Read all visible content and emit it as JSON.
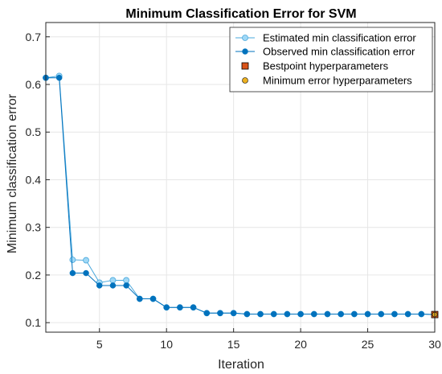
{
  "chart_data": {
    "type": "line",
    "title": "Minimum Classification Error for SVM",
    "xlabel": "Iteration",
    "ylabel": "Minimum classification error",
    "xlim": [
      1,
      30
    ],
    "ylim": [
      0.08,
      0.73
    ],
    "xticks": [
      5,
      10,
      15,
      20,
      25,
      30
    ],
    "yticks": [
      0.1,
      0.2,
      0.3,
      0.4,
      0.5,
      0.6,
      0.7
    ],
    "grid": true,
    "legend_position": "top-right",
    "colors": {
      "estimated": "#9fd8f6",
      "estimated_edge": "#4aa8dc",
      "observed": "#0072bd",
      "bestpoint": "#d95319",
      "minerror": "#edb120"
    },
    "series": [
      {
        "name": "Estimated min classification error",
        "x": [
          1,
          2,
          3,
          4,
          5,
          6,
          7,
          8,
          9,
          10,
          11,
          12,
          13,
          14,
          15,
          16,
          17,
          18,
          19,
          20,
          21,
          22,
          23,
          24,
          25,
          26,
          27,
          28,
          29,
          30
        ],
        "values": [
          0.614,
          0.618,
          0.232,
          0.231,
          0.184,
          0.189,
          0.189,
          0.15,
          0.15,
          0.132,
          0.132,
          0.132,
          0.12,
          0.12,
          0.12,
          0.118,
          0.118,
          0.118,
          0.118,
          0.118,
          0.118,
          0.118,
          0.118,
          0.118,
          0.118,
          0.118,
          0.118,
          0.118,
          0.118,
          0.117
        ]
      },
      {
        "name": "Observed min classification error",
        "x": [
          1,
          2,
          3,
          4,
          5,
          6,
          7,
          8,
          9,
          10,
          11,
          12,
          13,
          14,
          15,
          16,
          17,
          18,
          19,
          20,
          21,
          22,
          23,
          24,
          25,
          26,
          27,
          28,
          29,
          30
        ],
        "values": [
          0.614,
          0.614,
          0.204,
          0.204,
          0.178,
          0.178,
          0.178,
          0.15,
          0.15,
          0.132,
          0.132,
          0.132,
          0.12,
          0.12,
          0.12,
          0.118,
          0.118,
          0.118,
          0.118,
          0.118,
          0.118,
          0.118,
          0.118,
          0.118,
          0.118,
          0.118,
          0.118,
          0.118,
          0.118,
          0.117
        ]
      },
      {
        "name": "Bestpoint hyperparameters",
        "x": [
          30
        ],
        "values": [
          0.117
        ]
      },
      {
        "name": "Minimum error hyperparameters",
        "x": [
          30
        ],
        "values": [
          0.117
        ]
      }
    ]
  }
}
